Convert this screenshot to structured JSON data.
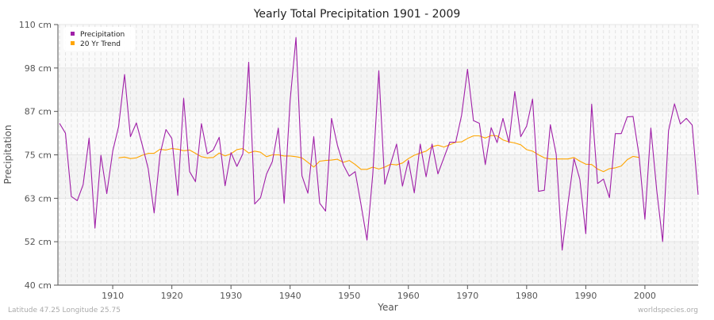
{
  "chart_data": {
    "type": "line",
    "title": "Yearly Total Precipitation 1901 - 2009",
    "xlabel": "Year",
    "ylabel": "Precipitation",
    "xlim": [
      1901,
      2009
    ],
    "ylim": [
      40,
      110
    ],
    "y_ticks": [
      40,
      51.67,
      63.33,
      75,
      86.67,
      98.33,
      110
    ],
    "y_tick_labels": [
      "40 cm",
      "52 cm",
      "63 cm",
      "75 cm",
      "87 cm",
      "98 cm",
      "110 cm"
    ],
    "x_ticks": [
      1910,
      1920,
      1930,
      1940,
      1950,
      1960,
      1970,
      1980,
      1990,
      2000
    ],
    "x_tick_labels": [
      "1910",
      "1920",
      "1930",
      "1940",
      "1950",
      "1960",
      "1970",
      "1980",
      "1990",
      "2000"
    ],
    "grid": true,
    "legend_position": "top-left",
    "x": [
      1901,
      1902,
      1903,
      1904,
      1905,
      1906,
      1907,
      1908,
      1909,
      1910,
      1911,
      1912,
      1913,
      1914,
      1915,
      1916,
      1917,
      1918,
      1919,
      1920,
      1921,
      1922,
      1923,
      1924,
      1925,
      1926,
      1927,
      1928,
      1929,
      1930,
      1931,
      1932,
      1933,
      1934,
      1935,
      1936,
      1937,
      1938,
      1939,
      1940,
      1941,
      1942,
      1943,
      1944,
      1945,
      1946,
      1947,
      1948,
      1949,
      1950,
      1951,
      1952,
      1953,
      1954,
      1955,
      1956,
      1957,
      1958,
      1959,
      1960,
      1961,
      1962,
      1963,
      1964,
      1965,
      1966,
      1967,
      1968,
      1969,
      1970,
      1971,
      1972,
      1973,
      1974,
      1975,
      1976,
      1977,
      1978,
      1979,
      1980,
      1981,
      1982,
      1983,
      1984,
      1985,
      1986,
      1987,
      1988,
      1989,
      1990,
      1991,
      1992,
      1993,
      1994,
      1995,
      1996,
      1997,
      1998,
      1999,
      2000,
      2001,
      2002,
      2003,
      2004,
      2005,
      2006,
      2007,
      2008,
      2009
    ],
    "series": [
      {
        "name": "Precipitation",
        "color": "#a020a8",
        "values": [
          83.5,
          80.8,
          63.8,
          62.7,
          67.0,
          79.5,
          55.3,
          74.9,
          64.6,
          76.0,
          82.6,
          96.6,
          79.9,
          83.6,
          77.6,
          71.3,
          59.4,
          75.1,
          81.8,
          79.4,
          64.1,
          90.2,
          70.5,
          67.8,
          83.4,
          75.3,
          76.3,
          79.7,
          66.7,
          75.6,
          71.9,
          75.3,
          99.9,
          61.8,
          63.5,
          69.8,
          73.2,
          82.2,
          62.0,
          89.6,
          106.5,
          69.4,
          64.7,
          79.9,
          62.0,
          59.9,
          84.8,
          77.6,
          72.3,
          69.3,
          70.5,
          61.6,
          52.1,
          70.1,
          97.6,
          67.1,
          72.6,
          77.9,
          66.6,
          73.5,
          64.8,
          77.9,
          69.1,
          77.9,
          69.9,
          74.2,
          78.4,
          78.4,
          85.7,
          98.0,
          84.2,
          83.5,
          72.4,
          82.3,
          78.3,
          84.8,
          78.3,
          92.0,
          79.9,
          82.7,
          90.0,
          65.2,
          65.5,
          83.1,
          75.1,
          49.4,
          62.0,
          74.0,
          68.4,
          53.8,
          88.6,
          67.3,
          68.5,
          63.5,
          80.7,
          80.7,
          85.2,
          85.3,
          74.9,
          57.7,
          82.2,
          65.5,
          51.7,
          81.5,
          88.7,
          83.3,
          84.8,
          83.0,
          64.3
        ]
      },
      {
        "name": "20 Yr Trend",
        "color": "#ffa500",
        "values": [
          null,
          null,
          null,
          null,
          null,
          null,
          null,
          null,
          null,
          null,
          74.2,
          74.4,
          74.0,
          74.2,
          74.9,
          75.4,
          75.4,
          76.5,
          76.3,
          76.7,
          76.5,
          76.1,
          76.3,
          75.4,
          74.5,
          74.2,
          74.3,
          75.5,
          74.7,
          75.3,
          76.4,
          76.7,
          75.5,
          76.0,
          75.7,
          74.5,
          75.0,
          75.0,
          74.7,
          74.7,
          74.5,
          74.2,
          73.0,
          71.7,
          73.3,
          73.5,
          73.6,
          73.8,
          73.0,
          73.5,
          72.4,
          71.1,
          71.1,
          71.7,
          71.2,
          71.7,
          72.5,
          72.3,
          72.8,
          74.0,
          74.9,
          75.5,
          76.0,
          77.2,
          77.6,
          77.1,
          77.7,
          78.4,
          78.5,
          79.4,
          80.1,
          80.1,
          79.5,
          80.2,
          80.1,
          79.0,
          78.5,
          78.2,
          77.7,
          76.4,
          76.0,
          75.0,
          74.2,
          73.9,
          73.9,
          73.9,
          73.9,
          74.3,
          73.3,
          72.5,
          72.4,
          71.2,
          70.5,
          71.3,
          71.5,
          72.0,
          73.7,
          74.6,
          74.3,
          null,
          null,
          null,
          null,
          null,
          null,
          null,
          null,
          null,
          null
        ]
      }
    ]
  },
  "footer": {
    "location": "Latitude 47.25 Longitude 25.75",
    "source": "worldspecies.org"
  }
}
